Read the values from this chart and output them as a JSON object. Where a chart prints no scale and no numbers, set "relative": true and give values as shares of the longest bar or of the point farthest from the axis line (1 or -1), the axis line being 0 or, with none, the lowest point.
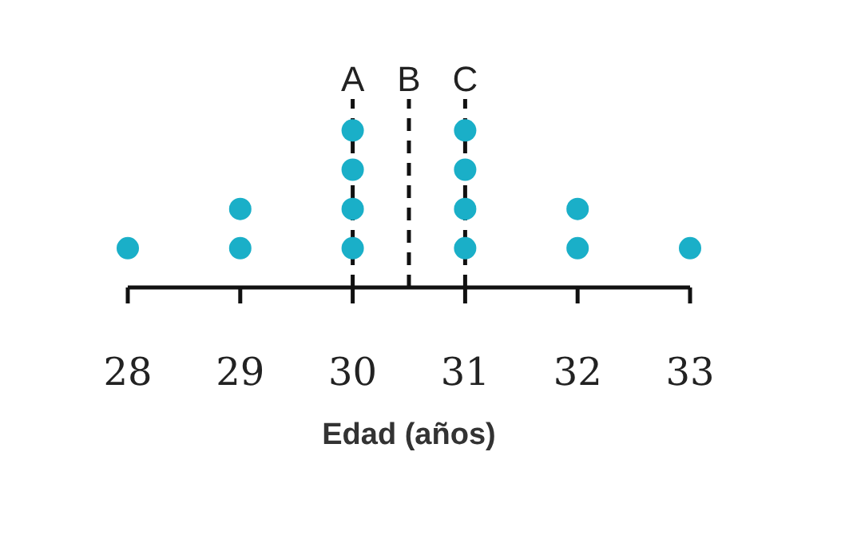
{
  "chart_data": {
    "type": "scatter",
    "relative": true,
    "marker": "circle",
    "tick_labels": "x",
    "color": "#1aafc8",
    "x": [
      28,
      29,
      29,
      30,
      30,
      30,
      30,
      31,
      31,
      31,
      31,
      32,
      32,
      33
    ],
    "values": [
      0.25,
      0.25,
      0.5,
      0.25,
      0.5,
      0.75,
      1,
      0.25,
      0.5,
      0.75,
      1,
      0.25,
      0.5,
      0.25
    ],
    "xlim": [
      28,
      33
    ],
    "xticks": [
      28,
      29,
      30,
      31,
      32,
      33
    ],
    "xlabel": "Edad (años)",
    "ref_lines": [
      {
        "axis": "x",
        "value": 30,
        "label": "A",
        "line_style": "dashed",
        "color": "#111111"
      },
      {
        "axis": "x",
        "value": 30.5,
        "label": "B",
        "line_style": "dashed",
        "color": "#111111"
      },
      {
        "axis": "x",
        "value": 31,
        "label": "C",
        "line_style": "dashed",
        "color": "#111111"
      }
    ]
  }
}
